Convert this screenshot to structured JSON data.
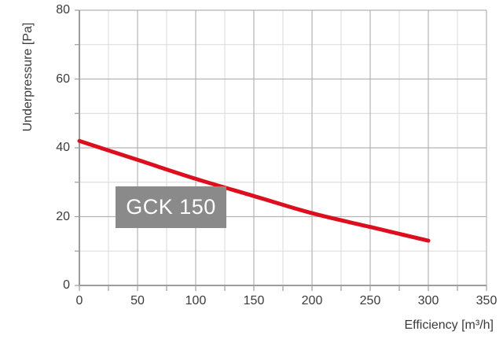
{
  "chart_data": {
    "type": "line",
    "title": "",
    "xlabel": "Efficiency [m³/h]",
    "ylabel": "Underpressure [Pa]",
    "xlim": [
      0,
      350
    ],
    "ylim": [
      0,
      80
    ],
    "x_major_step": 50,
    "x_minor_step": 25,
    "y_major_step": 20,
    "y_minor_step": 10,
    "x_tick_labels": [
      "0",
      "50",
      "100",
      "150",
      "200",
      "250",
      "300",
      "350"
    ],
    "y_tick_labels": [
      "0",
      "20",
      "40",
      "60",
      "80"
    ],
    "grid": "major+minor",
    "legend_position": "label-box-on-chart",
    "series_label": "GCK 150",
    "series": [
      {
        "name": "GCK 150",
        "x": [
          0,
          50,
          100,
          150,
          200,
          250,
          300
        ],
        "values": [
          42,
          36.5,
          31,
          26,
          21,
          17,
          13
        ]
      }
    ]
  },
  "colors": {
    "background": "#ffffff",
    "curve": "#dc0f1e",
    "label_box_bg": "#8a8a8a",
    "label_box_text": "#ffffff",
    "grid_minor": "#d9d9d9",
    "grid_major": "#b3b3b3",
    "axis": "#9d9d9d",
    "text": "#3b3b3b"
  }
}
